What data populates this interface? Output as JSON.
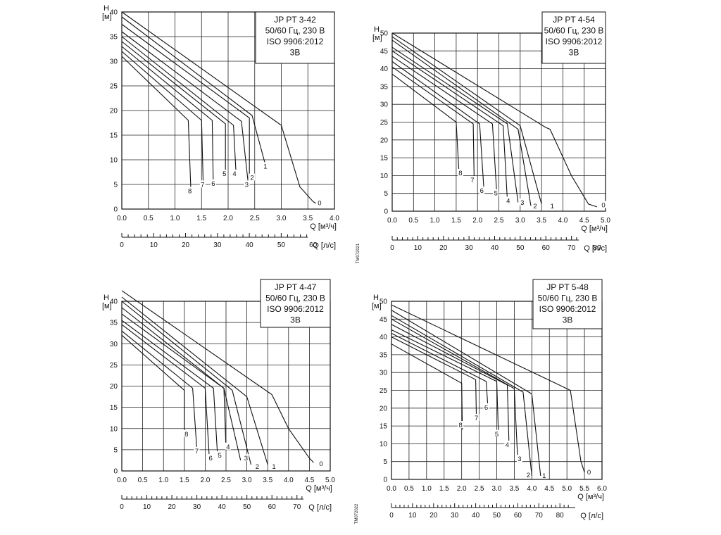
{
  "chart_data": [
    {
      "type": "line",
      "title": [
        "JP PT 3-42",
        "50/60 Гц, 230 В",
        "ISO 9906:2012",
        "3B"
      ],
      "ylabel": [
        "H",
        "[м]"
      ],
      "xlabel": "Q [м³/ч]",
      "x2label": "Q [л/с]",
      "doc_code": "TM072021",
      "ylim": [
        0,
        40
      ],
      "yticks": [
        0,
        5,
        10,
        15,
        20,
        25,
        30,
        35,
        40
      ],
      "xlim": [
        0,
        4.0
      ],
      "xticks": [
        "0.0",
        "0.5",
        "1.0",
        "1.5",
        "2.0",
        "2.5",
        "3.0",
        "3.5",
        "4.0"
      ],
      "x2ticks": [
        "0",
        "10",
        "20",
        "30",
        "40",
        "50",
        "60"
      ],
      "x2max": 66.7,
      "series": [
        {
          "name": "0",
          "points": [
            [
              0,
              40
            ],
            [
              3.0,
              17
            ],
            [
              3.35,
              4.5
            ],
            [
              3.6,
              1.5
            ],
            [
              3.65,
              1.2
            ]
          ],
          "label_at": [
            3.72,
            1.1
          ]
        },
        {
          "name": "1",
          "points": [
            [
              0,
              39
            ],
            [
              2.45,
              19
            ],
            [
              2.7,
              9
            ]
          ],
          "label_at": [
            2.7,
            8.5
          ]
        },
        {
          "name": "2",
          "points": [
            [
              0,
              37.5
            ],
            [
              2.4,
              18.5
            ],
            [
              2.4,
              6.2
            ]
          ],
          "label_at": [
            2.45,
            6.2
          ]
        },
        {
          "name": "3",
          "points": [
            [
              0,
              36
            ],
            [
              2.25,
              17.8
            ],
            [
              2.38,
              5
            ]
          ],
          "label_at": [
            2.35,
            4.8
          ]
        },
        {
          "name": "4",
          "points": [
            [
              0,
              35
            ],
            [
              2.1,
              17
            ],
            [
              2.15,
              7
            ]
          ],
          "label_at": [
            2.12,
            7
          ]
        },
        {
          "name": "5",
          "points": [
            [
              0,
              34
            ],
            [
              1.95,
              17.3
            ],
            [
              1.95,
              7
            ]
          ],
          "label_at": [
            1.93,
            7
          ]
        },
        {
          "name": "6",
          "points": [
            [
              0,
              33
            ],
            [
              1.7,
              18
            ],
            [
              1.72,
              5
            ]
          ],
          "label_at": [
            1.72,
            5
          ]
        },
        {
          "name": "7",
          "points": [
            [
              0,
              32
            ],
            [
              1.5,
              18
            ],
            [
              1.53,
              5.5
            ]
          ],
          "label_at": [
            1.52,
            4.8
          ]
        },
        {
          "name": "8",
          "points": [
            [
              0,
              31
            ],
            [
              1.25,
              18
            ],
            [
              1.3,
              3.7
            ]
          ],
          "label_at": [
            1.28,
            3.5
          ]
        }
      ]
    },
    {
      "type": "line",
      "title": [
        "JP PT 4-54",
        "50/60 Гц, 230 В",
        "ISO 9906:2012",
        "3B"
      ],
      "ylabel": [
        "H",
        "[м]"
      ],
      "xlabel": "Q [м³/ч]",
      "x2label": "Q [л/с]",
      "ylim": [
        0,
        50
      ],
      "yticks": [
        0,
        5,
        10,
        15,
        20,
        25,
        30,
        35,
        40,
        45,
        50
      ],
      "xlim": [
        0,
        5.0
      ],
      "xticks": [
        "0.0",
        "0.5",
        "1.0",
        "1.5",
        "2.0",
        "2.5",
        "3.0",
        "3.5",
        "4.0",
        "4.5",
        "5.0"
      ],
      "x2ticks": [
        "0",
        "10",
        "20",
        "30",
        "40",
        "50",
        "60",
        "70",
        "80"
      ],
      "x2max": 83.3,
      "series": [
        {
          "name": "0",
          "points": [
            [
              0,
              50
            ],
            [
              3.6,
              23.5
            ],
            [
              3.7,
              23
            ],
            [
              4.2,
              10
            ],
            [
              4.6,
              2
            ],
            [
              4.8,
              1.2
            ]
          ],
          "label_at": [
            4.95,
            1.5
          ]
        },
        {
          "name": "1",
          "points": [
            [
              0,
              49
            ],
            [
              3.0,
              24
            ],
            [
              3.5,
              2
            ]
          ],
          "label_at": [
            3.75,
            1.2
          ]
        },
        {
          "name": "2",
          "points": [
            [
              0,
              48
            ],
            [
              2.95,
              23
            ],
            [
              3.25,
              1.5
            ]
          ],
          "label_at": [
            3.35,
            1.2
          ]
        },
        {
          "name": "3",
          "points": [
            [
              0,
              46
            ],
            [
              2.7,
              24.5
            ],
            [
              2.95,
              2.5
            ]
          ],
          "label_at": [
            3.05,
            2.2
          ]
        },
        {
          "name": "4",
          "points": [
            [
              0,
              45
            ],
            [
              2.6,
              24
            ],
            [
              2.7,
              3
            ]
          ],
          "label_at": [
            2.72,
            2.7
          ]
        },
        {
          "name": "5",
          "points": [
            [
              0,
              43.5
            ],
            [
              2.35,
              24.5
            ],
            [
              2.45,
              5
            ]
          ],
          "label_at": [
            2.43,
            4.8
          ]
        },
        {
          "name": "6",
          "points": [
            [
              0,
              42
            ],
            [
              2.05,
              24.5
            ],
            [
              2.15,
              6
            ]
          ],
          "label_at": [
            2.1,
            5.5
          ]
        },
        {
          "name": "7",
          "points": [
            [
              0,
              40.5
            ],
            [
              1.9,
              24.5
            ],
            [
              1.92,
              9
            ]
          ],
          "label_at": [
            1.88,
            8.5
          ]
        },
        {
          "name": "8",
          "points": [
            [
              0,
              38.5
            ],
            [
              1.5,
              25
            ],
            [
              1.57,
              10
            ]
          ],
          "label_at": [
            1.6,
            10.5
          ]
        }
      ]
    },
    {
      "type": "line",
      "title": [
        "JP PT 4-47",
        "50/60 Гц, 230 В",
        "ISO 9906:2012",
        "3B"
      ],
      "ylabel": [
        "H",
        "[м]"
      ],
      "xlabel": "Q [м³/ч]",
      "x2label": "Q [л/с]",
      "doc_code": "TM072022",
      "ylim": [
        0,
        40
      ],
      "yticks": [
        0,
        5,
        10,
        15,
        20,
        25,
        30,
        35,
        40
      ],
      "xlim": [
        0,
        5.0
      ],
      "xticks": [
        "0.0",
        "0.5",
        "1.0",
        "1.5",
        "2.0",
        "2.5",
        "3.0",
        "3.5",
        "4.0",
        "4.5",
        "5.0"
      ],
      "x2ticks": [
        "0",
        "10",
        "20",
        "30",
        "40",
        "50",
        "60",
        "70"
      ],
      "x2max": 83.3,
      "series": [
        {
          "name": "0",
          "points": [
            [
              0,
              42.5
            ],
            [
              3.6,
              18
            ],
            [
              4.0,
              10
            ],
            [
              4.5,
              3
            ],
            [
              4.6,
              2
            ]
          ],
          "label_at": [
            4.78,
            1.5
          ]
        },
        {
          "name": "1",
          "points": [
            [
              0,
              41
            ],
            [
              3.0,
              17.5
            ],
            [
              3.5,
              1.5
            ]
          ],
          "label_at": [
            3.65,
            0.8
          ]
        },
        {
          "name": "2",
          "points": [
            [
              0,
              40
            ],
            [
              2.65,
              19
            ],
            [
              3.1,
              1.5
            ]
          ],
          "label_at": [
            3.25,
            0.8
          ]
        },
        {
          "name": "3",
          "points": [
            [
              0,
              38.5
            ],
            [
              2.45,
              19.5
            ],
            [
              2.85,
              2.5
            ]
          ],
          "label_at": [
            2.98,
            2.8
          ]
        },
        {
          "name": "4",
          "points": [
            [
              0,
              37
            ],
            [
              2.45,
              19.5
            ],
            [
              2.5,
              5
            ]
          ],
          "label_at": [
            2.55,
            5.5
          ]
        },
        {
          "name": "5",
          "points": [
            [
              0,
              35.5
            ],
            [
              2.2,
              19.5
            ],
            [
              2.3,
              3
            ]
          ],
          "label_at": [
            2.35,
            3.5
          ]
        },
        {
          "name": "6",
          "points": [
            [
              0,
              34.5
            ],
            [
              2.0,
              19.5
            ],
            [
              2.1,
              3
            ]
          ],
          "label_at": [
            2.13,
            2.8
          ]
        },
        {
          "name": "7",
          "points": [
            [
              0,
              33
            ],
            [
              1.7,
              19.5
            ],
            [
              1.8,
              5
            ]
          ],
          "label_at": [
            1.8,
            4.5
          ]
        },
        {
          "name": "8",
          "points": [
            [
              0,
              32
            ],
            [
              1.5,
              19
            ],
            [
              1.5,
              8
            ]
          ],
          "label_at": [
            1.55,
            8.5
          ]
        }
      ]
    },
    {
      "type": "line",
      "title": [
        "JP PT 5-48",
        "50/60 Гц, 230 В",
        "ISO 9906:2012",
        "3B"
      ],
      "ylabel": [
        "H",
        "[м]"
      ],
      "xlabel": "Q [м³/ч]",
      "x2label": "Q [л/с]",
      "ylim": [
        0,
        50
      ],
      "yticks": [
        0,
        5,
        10,
        15,
        20,
        25,
        30,
        35,
        40,
        45,
        50
      ],
      "xlim": [
        0,
        6.0
      ],
      "xticks": [
        "0.0",
        "0.5",
        "1.0",
        "1.5",
        "2.0",
        "2.5",
        "3.0",
        "3.5",
        "4.0",
        "4.5",
        "5.0",
        "5.5",
        "6.0"
      ],
      "x2ticks": [
        "0",
        "10",
        "20",
        "30",
        "40",
        "50",
        "60",
        "70",
        "80"
      ],
      "x2max": 100,
      "series": [
        {
          "name": "0",
          "points": [
            [
              0,
              49
            ],
            [
              5.1,
              25
            ],
            [
              5.4,
              5
            ],
            [
              5.5,
              2
            ]
          ],
          "label_at": [
            5.63,
            1.8
          ]
        },
        {
          "name": "1",
          "points": [
            [
              0,
              47.5
            ],
            [
              4.0,
              24
            ],
            [
              4.25,
              1
            ]
          ],
          "label_at": [
            4.35,
            0.8
          ]
        },
        {
          "name": "2",
          "points": [
            [
              0,
              46
            ],
            [
              3.75,
              24.5
            ],
            [
              4.0,
              1
            ]
          ],
          "label_at": [
            3.9,
            1
          ]
        },
        {
          "name": "3",
          "points": [
            [
              0,
              45
            ],
            [
              3.5,
              25.5
            ],
            [
              3.6,
              5
            ]
          ],
          "label_at": [
            3.65,
            5.5
          ]
        },
        {
          "name": "4",
          "points": [
            [
              0,
              43.5
            ],
            [
              3.3,
              26.5
            ],
            [
              3.35,
              10
            ]
          ],
          "label_at": [
            3.3,
            9.5
          ]
        },
        {
          "name": "5",
          "points": [
            [
              0,
              42
            ],
            [
              3.0,
              27.5
            ],
            [
              3.05,
              12
            ]
          ],
          "label_at": [
            3.0,
            12.5
          ]
        },
        {
          "name": "6",
          "points": [
            [
              0,
              41
            ],
            [
              2.7,
              27.5
            ],
            [
              2.75,
              20
            ]
          ],
          "label_at": [
            2.7,
            20
          ]
        },
        {
          "name": "7",
          "points": [
            [
              0,
              40
            ],
            [
              2.4,
              28
            ],
            [
              2.42,
              17
            ]
          ],
          "label_at": [
            2.42,
            17
          ]
        },
        {
          "name": "8",
          "points": [
            [
              0,
              38
            ],
            [
              2.0,
              27
            ],
            [
              2.02,
              14
            ]
          ],
          "label_at": [
            1.97,
            15
          ]
        }
      ]
    }
  ]
}
